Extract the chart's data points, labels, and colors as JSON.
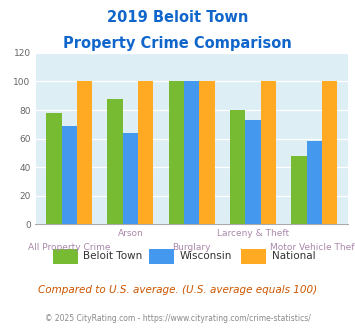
{
  "title_line1": "2019 Beloit Town",
  "title_line2": "Property Crime Comparison",
  "categories": [
    "All Property Crime",
    "Arson",
    "Burglary",
    "Larceny & Theft",
    "Motor Vehicle Theft"
  ],
  "beloit_town": [
    78,
    88,
    100,
    80,
    48
  ],
  "wisconsin": [
    69,
    64,
    100,
    73,
    58
  ],
  "national": [
    100,
    100,
    100,
    100,
    100
  ],
  "colors": {
    "beloit_town": "#77bb33",
    "wisconsin": "#4499ee",
    "national": "#ffaa22"
  },
  "ylim": [
    0,
    120
  ],
  "yticks": [
    0,
    20,
    40,
    60,
    80,
    100,
    120
  ],
  "xlabel_color": "#aa88aa",
  "title_color": "#1166cc",
  "plot_bg": "#ddeef5",
  "legend_labels": [
    "Beloit Town",
    "Wisconsin",
    "National"
  ],
  "footnote": "Compared to U.S. average. (U.S. average equals 100)",
  "copyright": "© 2025 CityRating.com - https://www.cityrating.com/crime-statistics/",
  "bar_width": 0.25
}
